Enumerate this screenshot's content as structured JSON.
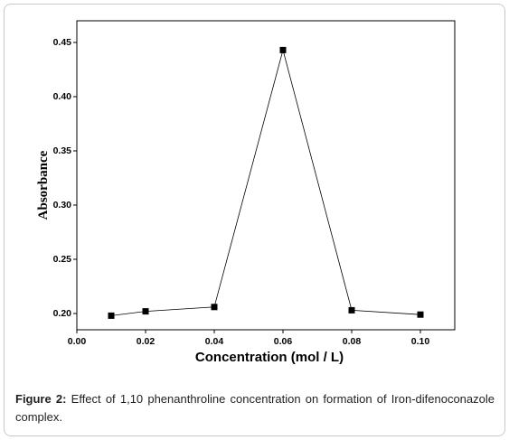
{
  "chart_data": {
    "type": "line",
    "x": [
      0.01,
      0.02,
      0.04,
      0.06,
      0.08,
      0.1
    ],
    "series": [
      {
        "values": [
          0.198,
          0.202,
          0.206,
          0.443,
          0.203,
          0.199
        ]
      }
    ],
    "xlabel": "Concentration (mol / L)",
    "ylabel": "Absorbance",
    "xlim": [
      0.0,
      0.11
    ],
    "ylim": [
      0.185,
      0.47
    ],
    "xticks": [
      "0.00",
      "0.02",
      "0.04",
      "0.06",
      "0.08",
      "0.10"
    ],
    "xtick_values": [
      0.0,
      0.02,
      0.04,
      0.06,
      0.08,
      0.1
    ],
    "yticks": [
      "0.20",
      "0.25",
      "0.30",
      "0.35",
      "0.40",
      "0.45"
    ],
    "ytick_values": [
      0.2,
      0.25,
      0.3,
      0.35,
      0.4,
      0.45
    ],
    "grid": false,
    "marker": "square",
    "line_color": "#000000"
  },
  "caption": {
    "label": "Figure 2:",
    "text": " Effect of 1,10 phenanthroline concentration on formation of Iron-difenoconazole complex."
  }
}
